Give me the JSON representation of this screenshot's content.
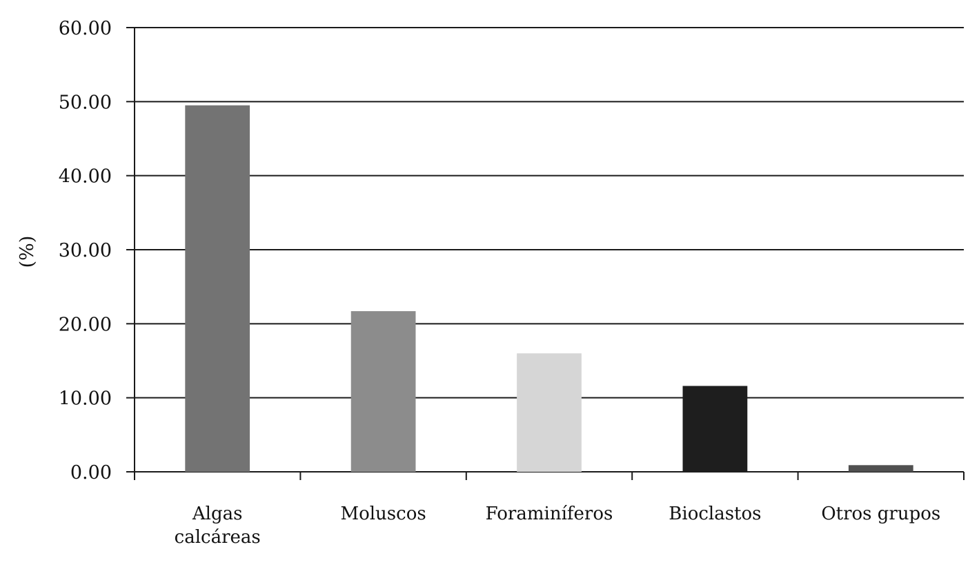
{
  "chart_data": {
    "type": "bar",
    "categories": [
      [
        "Algas",
        "calcáreas"
      ],
      [
        "Moluscos"
      ],
      [
        "Foraminíferos"
      ],
      [
        "Bioclastos"
      ],
      [
        "Otros grupos"
      ]
    ],
    "values": [
      49.5,
      21.7,
      16.0,
      11.6,
      0.9
    ],
    "bar_colors": [
      "#737373",
      "#8c8c8c",
      "#d6d6d6",
      "#1e1e1e",
      "#505050"
    ],
    "ylabel": "(%)",
    "ylim": [
      0,
      60
    ],
    "yticks": [
      0,
      10,
      20,
      30,
      40,
      50,
      60
    ],
    "ytick_labels": [
      "0.00",
      "10.00",
      "20.00",
      "30.00",
      "40.00",
      "50.00",
      "60.00"
    ],
    "grid": true,
    "legend": "none"
  }
}
